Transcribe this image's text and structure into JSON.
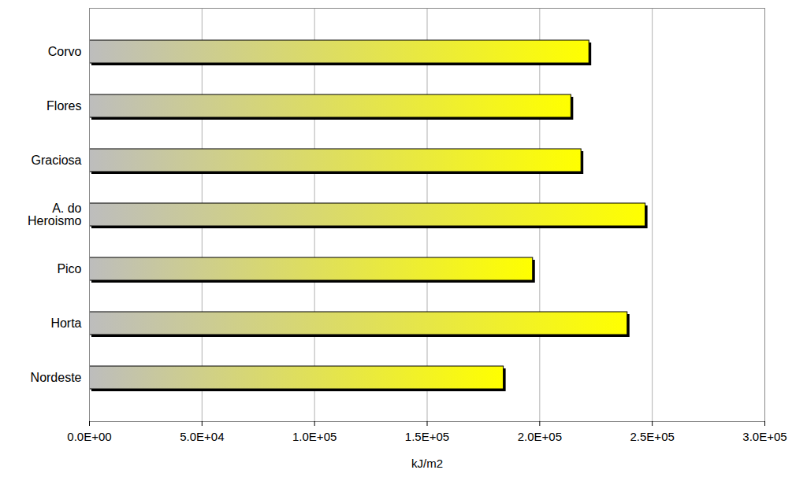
{
  "chart_data": {
    "type": "bar",
    "orientation": "horizontal",
    "categories": [
      "Corvo",
      "Flores",
      "Graciosa",
      "A. do\nHeroismo",
      "Pico",
      "Horta",
      "Nordeste"
    ],
    "values": [
      222000,
      214000,
      218500,
      247000,
      197000,
      239000,
      184000
    ],
    "color": "#ffff00",
    "x_label": "kJ/m2",
    "xlim": [
      0,
      300000
    ],
    "xticks": [
      {
        "value": 0,
        "label": "0.0E+00"
      },
      {
        "value": 50000,
        "label": "5.0E+04"
      },
      {
        "value": 100000,
        "label": "1.0E+05"
      },
      {
        "value": 150000,
        "label": "1.5E+05"
      },
      {
        "value": 200000,
        "label": "2.0E+05"
      },
      {
        "value": 250000,
        "label": "2.5E+05"
      },
      {
        "value": 300000,
        "label": "3.0E+05"
      }
    ],
    "grid": true
  }
}
